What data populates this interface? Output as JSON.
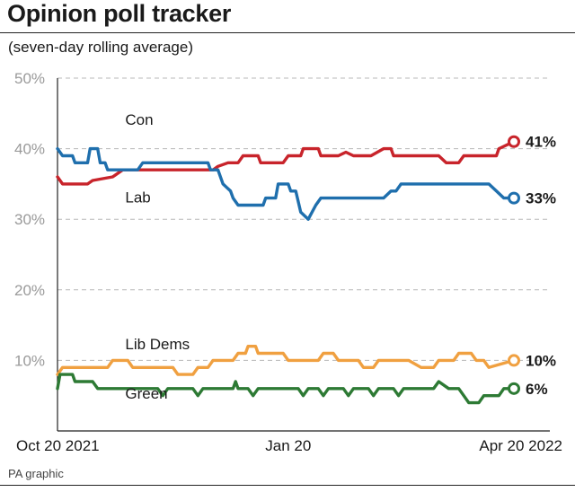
{
  "header": {
    "title": "Opinion poll tracker",
    "subtitle": "(seven-day rolling average)"
  },
  "footer": {
    "credit": "PA graphic"
  },
  "chart_data": {
    "type": "line",
    "title": "Opinion poll tracker",
    "subtitle": "(seven-day rolling average)",
    "xlabel": "",
    "ylabel": "",
    "ylim": [
      0,
      50
    ],
    "y_ticks": [
      10,
      20,
      30,
      40,
      50
    ],
    "y_tick_labels": [
      "10%",
      "20%",
      "30%",
      "40%",
      "50%"
    ],
    "x_ticks": [
      0,
      92,
      182
    ],
    "x_tick_labels": [
      "Oct 20 2021",
      "Jan 20",
      "Apr 20 2022"
    ],
    "x_range": [
      0,
      182
    ],
    "grid": true,
    "series": [
      {
        "name": "Con",
        "color": "#c8242b",
        "end_label": "41%",
        "points": [
          [
            0,
            36
          ],
          [
            2,
            35
          ],
          [
            12,
            35
          ],
          [
            14,
            35.5
          ],
          [
            22,
            36
          ],
          [
            26,
            37
          ],
          [
            62,
            37
          ],
          [
            64,
            37.5
          ],
          [
            68,
            38
          ],
          [
            72,
            38
          ],
          [
            74,
            39
          ],
          [
            80,
            39
          ],
          [
            81,
            38
          ],
          [
            90,
            38
          ],
          [
            92,
            39
          ],
          [
            97,
            39
          ],
          [
            98,
            40
          ],
          [
            104,
            40
          ],
          [
            105,
            39
          ],
          [
            112,
            39
          ],
          [
            115,
            39.5
          ],
          [
            118,
            39
          ],
          [
            125,
            39
          ],
          [
            130,
            40
          ],
          [
            133,
            40
          ],
          [
            134,
            39
          ],
          [
            145,
            39
          ],
          [
            152,
            39
          ],
          [
            155,
            38
          ],
          [
            160,
            38
          ],
          [
            162,
            39
          ],
          [
            175,
            39
          ],
          [
            176,
            40
          ],
          [
            182,
            41
          ]
        ]
      },
      {
        "name": "Lab",
        "color": "#1f6fad",
        "end_label": "33%",
        "points": [
          [
            0,
            40
          ],
          [
            2,
            39
          ],
          [
            6,
            39
          ],
          [
            7,
            38
          ],
          [
            12,
            38
          ],
          [
            13,
            40
          ],
          [
            16,
            40
          ],
          [
            17,
            38
          ],
          [
            19,
            38
          ],
          [
            20,
            37
          ],
          [
            32,
            37
          ],
          [
            34,
            38
          ],
          [
            60,
            38
          ],
          [
            61,
            37
          ],
          [
            64,
            37
          ],
          [
            66,
            35
          ],
          [
            69,
            34
          ],
          [
            70,
            33
          ],
          [
            72,
            32
          ],
          [
            82,
            32
          ],
          [
            83,
            33
          ],
          [
            87,
            33
          ],
          [
            88,
            35
          ],
          [
            92,
            35
          ],
          [
            93,
            34
          ],
          [
            95,
            34
          ],
          [
            97,
            31
          ],
          [
            100,
            30
          ],
          [
            103,
            32
          ],
          [
            105,
            33
          ],
          [
            130,
            33
          ],
          [
            133,
            34
          ],
          [
            135,
            34
          ],
          [
            137,
            35
          ],
          [
            172,
            35
          ],
          [
            175,
            34
          ],
          [
            178,
            33
          ],
          [
            182,
            33
          ]
        ]
      },
      {
        "name": "Lib Dems",
        "color": "#f0a040",
        "end_label": "10%",
        "points": [
          [
            0,
            8
          ],
          [
            2,
            9
          ],
          [
            10,
            9
          ],
          [
            12,
            9
          ],
          [
            20,
            9
          ],
          [
            22,
            10
          ],
          [
            28,
            10
          ],
          [
            30,
            9
          ],
          [
            38,
            9
          ],
          [
            40,
            9
          ],
          [
            46,
            9
          ],
          [
            48,
            8
          ],
          [
            54,
            8
          ],
          [
            56,
            9
          ],
          [
            60,
            9
          ],
          [
            62,
            10
          ],
          [
            70,
            10
          ],
          [
            72,
            11
          ],
          [
            75,
            11
          ],
          [
            76,
            12
          ],
          [
            79,
            12
          ],
          [
            80,
            11
          ],
          [
            90,
            11
          ],
          [
            92,
            10
          ],
          [
            104,
            10
          ],
          [
            106,
            11
          ],
          [
            110,
            11
          ],
          [
            112,
            10
          ],
          [
            120,
            10
          ],
          [
            122,
            9
          ],
          [
            126,
            9
          ],
          [
            128,
            10
          ],
          [
            140,
            10
          ],
          [
            145,
            9
          ],
          [
            150,
            9
          ],
          [
            152,
            10
          ],
          [
            158,
            10
          ],
          [
            160,
            11
          ],
          [
            165,
            11
          ],
          [
            167,
            10
          ],
          [
            170,
            10
          ],
          [
            172,
            9
          ],
          [
            182,
            10
          ]
        ]
      },
      {
        "name": "Green",
        "color": "#2d7a34",
        "end_label": "6%",
        "points": [
          [
            0,
            6
          ],
          [
            1,
            8
          ],
          [
            6,
            8
          ],
          [
            7,
            7
          ],
          [
            14,
            7
          ],
          [
            16,
            6
          ],
          [
            40,
            6
          ],
          [
            42,
            5
          ],
          [
            44,
            6
          ],
          [
            54,
            6
          ],
          [
            56,
            5
          ],
          [
            58,
            6
          ],
          [
            70,
            6
          ],
          [
            71,
            7
          ],
          [
            72,
            6
          ],
          [
            76,
            6
          ],
          [
            78,
            5
          ],
          [
            80,
            6
          ],
          [
            96,
            6
          ],
          [
            98,
            5
          ],
          [
            100,
            6
          ],
          [
            104,
            6
          ],
          [
            106,
            5
          ],
          [
            108,
            6
          ],
          [
            114,
            6
          ],
          [
            116,
            5
          ],
          [
            118,
            6
          ],
          [
            124,
            6
          ],
          [
            126,
            5
          ],
          [
            128,
            6
          ],
          [
            134,
            6
          ],
          [
            136,
            5
          ],
          [
            138,
            6
          ],
          [
            150,
            6
          ],
          [
            152,
            7
          ],
          [
            156,
            6
          ],
          [
            160,
            6
          ],
          [
            162,
            5
          ],
          [
            164,
            4
          ],
          [
            168,
            4
          ],
          [
            170,
            5
          ],
          [
            176,
            5
          ],
          [
            178,
            6
          ],
          [
            182,
            6
          ]
        ]
      }
    ]
  }
}
